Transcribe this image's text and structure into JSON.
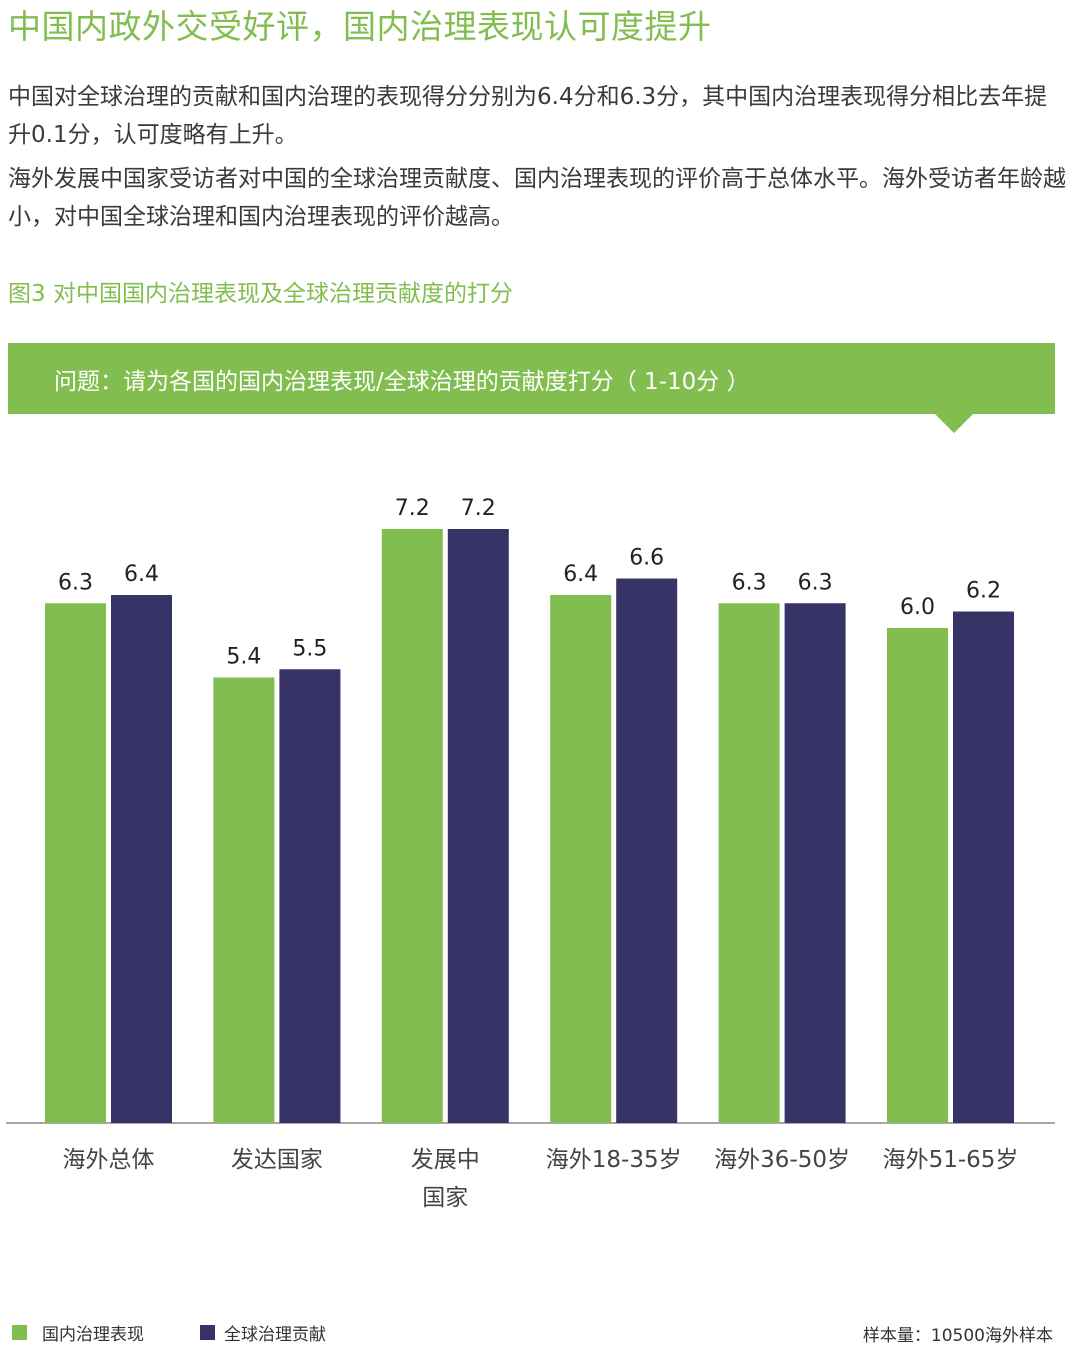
{
  "heading": "中国内政外交受好评，国内治理表现认可度提升",
  "paragraphs": [
    "中国对全球治理的贡献和国内治理的表现得分分别为6.4分和6.3分，其中国内治理表现得分相比去年提升0.1分，认可度略有上升。",
    "海外发展中国家受访者对中国的全球治理贡献度、国内治理表现的评价高于总体水平。海外受访者年龄越小，对中国全球治理和国内治理表现的评价越高。"
  ],
  "figure_title": "图3 对中国国内治理表现及全球治理贡献度的打分",
  "question": "问题：请为各国的国内治理表现/全球治理的贡献度打分（ 1-10分 ）",
  "sample_note": "样本量：10500海外样本",
  "colors": {
    "accent": "#82be4f",
    "series_domestic": "#82be4f",
    "series_global": "#363366"
  },
  "chart_data": {
    "type": "bar",
    "categories": [
      [
        "海外总体"
      ],
      [
        "发达国家"
      ],
      [
        "发展中",
        "国家"
      ],
      [
        "海外18-35岁"
      ],
      [
        "海外36-50岁"
      ],
      [
        "海外51-65岁"
      ]
    ],
    "series": [
      {
        "name": "国内治理表现",
        "color": "#82be4f",
        "values": [
          6.3,
          5.4,
          7.2,
          6.4,
          6.3,
          6.0
        ],
        "labels": [
          "6.3",
          "5.4",
          "7.2",
          "6.4",
          "6.3",
          "6.0"
        ]
      },
      {
        "name": "全球治理贡献",
        "color": "#363366",
        "values": [
          6.4,
          5.5,
          7.2,
          6.6,
          6.3,
          6.2
        ],
        "labels": [
          "6.4",
          "5.5",
          "7.2",
          "6.6",
          "6.3",
          "6.2"
        ]
      }
    ],
    "ylim": [
      0,
      7.2
    ],
    "grid": false,
    "legend": "bottom-left"
  }
}
